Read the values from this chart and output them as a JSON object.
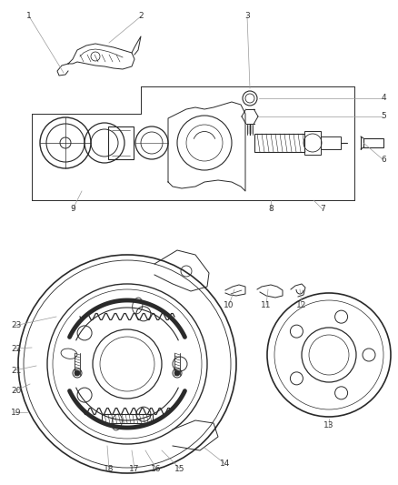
{
  "bg_color": "#ffffff",
  "line_color": "#2a2a2a",
  "label_color": "#333333",
  "leader_color": "#999999",
  "figsize": [
    4.38,
    5.33
  ],
  "dpi": 100,
  "fs": 6.5,
  "lw": 0.7
}
